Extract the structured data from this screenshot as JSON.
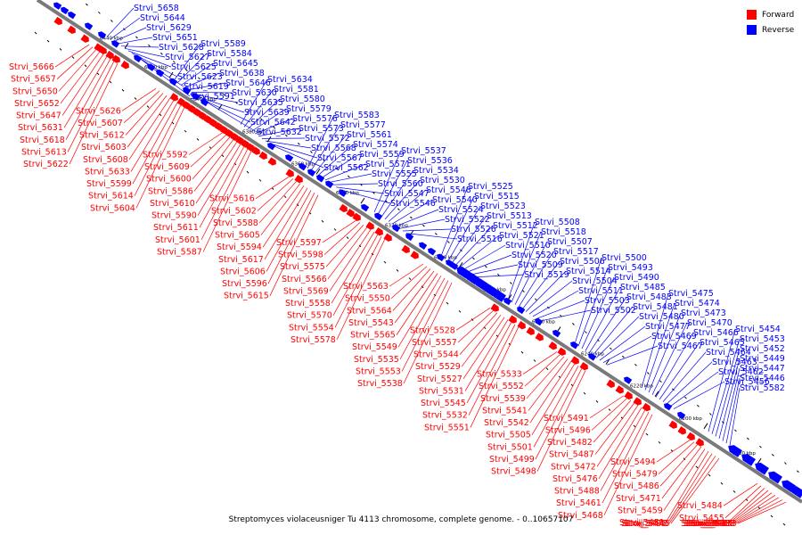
{
  "caption": "Streptomyces violaceusniger Tu 4113 chromosome, complete genome. - 0..10657107",
  "legend": {
    "forward_label": "Forward",
    "reverse_label": "Reverse",
    "forward_color": "#ff0000",
    "reverse_color": "#0000ff"
  },
  "colors": {
    "forward": "#ff0000",
    "reverse": "#0000ff",
    "backbone": "#7a7a7a",
    "tick": "#000000"
  },
  "ruler": {
    "unit": "kbp",
    "ticks": [
      "6440 kbp",
      "6420 kbp",
      "6400 kbp",
      "6380 kbp",
      "6360 kbp",
      "6340 kbp",
      "6320 kbp",
      "6300 kbp",
      "6280 kbp",
      "6260 kbp",
      "6240 kbp",
      "6220 kbp",
      "6200 kbp",
      "6180 kbp"
    ]
  },
  "reverse_labels": [
    "Strvi_5658",
    "Strvi_5644",
    "Strvi_5629",
    "Strvi_5651",
    "Strvi_5628",
    "Strvi_5627",
    "Strvi_5625",
    "Strvi_5623",
    "Strvi_5619",
    "Strvi_5591",
    "Strvi_5589",
    "Strvi_5584",
    "Strvi_5645",
    "Strvi_5638",
    "Strvi_5646",
    "Strvi_5630",
    "Strvi_5635",
    "Strvi_5639",
    "Strvi_5642",
    "Strvi_5632",
    "Strvi_5634",
    "Strvi_5581",
    "Strvi_5580",
    "Strvi_5579",
    "Strvi_5576",
    "Strvi_5573",
    "Strvi_5572",
    "Strvi_5568",
    "Strvi_5567",
    "Strvi_5562",
    "Strvi_5583",
    "Strvi_5577",
    "Strvi_5561",
    "Strvi_5574",
    "Strvi_5559",
    "Strvi_5571",
    "Strvi_5555",
    "Strvi_5560",
    "Strvi_5547",
    "Strvi_5546",
    "Strvi_5537",
    "Strvi_5536",
    "Strvi_5534",
    "Strvi_5530",
    "Strvi_5548",
    "Strvi_5540",
    "Strvi_5524",
    "Strvi_5522",
    "Strvi_5526",
    "Strvi_5516",
    "Strvi_5525",
    "Strvi_5515",
    "Strvi_5523",
    "Strvi_5513",
    "Strvi_5512",
    "Strvi_5521",
    "Strvi_5510",
    "Strvi_5520",
    "Strvi_5509",
    "Strvi_5519",
    "Strvi_5508",
    "Strvi_5518",
    "Strvi_5507",
    "Strvi_5517",
    "Strvi_5506",
    "Strvi_5514",
    "Strvi_5504",
    "Strvi_5511",
    "Strvi_5503",
    "Strvi_5502",
    "Strvi_5500",
    "Strvi_5493",
    "Strvi_5490",
    "Strvi_5485",
    "Strvi_5483",
    "Strvi_5481",
    "Strvi_5480",
    "Strvi_5477",
    "Strvi_5469",
    "Strvi_5467",
    "Strvi_5475",
    "Strvi_5474",
    "Strvi_5473",
    "Strvi_5470",
    "Strvi_5466",
    "Strvi_5465",
    "Strvi_5464",
    "Strvi_5463",
    "Strvi_5462",
    "Strvi_5456",
    "Strvi_5454",
    "Strvi_5453",
    "Strvi_5452",
    "Strvi_5449",
    "Strvi_5447",
    "Strvi_5446",
    "Strvi_5582"
  ],
  "forward_labels": [
    "Strvi_5666",
    "Strvi_5657",
    "Strvi_5650",
    "Strvi_5652",
    "Strvi_5647",
    "Strvi_5631",
    "Strvi_5618",
    "Strvi_5613",
    "Strvi_5622",
    "Strvi_5626",
    "Strvi_5607",
    "Strvi_5612",
    "Strvi_5603",
    "Strvi_5608",
    "Strvi_5633",
    "Strvi_5599",
    "Strvi_5614",
    "Strvi_5604",
    "Strvi_5592",
    "Strvi_5609",
    "Strvi_5600",
    "Strvi_5586",
    "Strvi_5610",
    "Strvi_5590",
    "Strvi_5611",
    "Strvi_5601",
    "Strvi_5587",
    "Strvi_5616",
    "Strvi_5602",
    "Strvi_5588",
    "Strvi_5605",
    "Strvi_5594",
    "Strvi_5617",
    "Strvi_5606",
    "Strvi_5596",
    "Strvi_5615",
    "Strvi_5597",
    "Strvi_5598",
    "Strvi_5575",
    "Strvi_5566",
    "Strvi_5569",
    "Strvi_5558",
    "Strvi_5570",
    "Strvi_5554",
    "Strvi_5578",
    "Strvi_5563",
    "Strvi_5550",
    "Strvi_5564",
    "Strvi_5543",
    "Strvi_5565",
    "Strvi_5549",
    "Strvi_5535",
    "Strvi_5553",
    "Strvi_5538",
    "Strvi_5528",
    "Strvi_5557",
    "Strvi_5544",
    "Strvi_5529",
    "Strvi_5527",
    "Strvi_5531",
    "Strvi_5545",
    "Strvi_5532",
    "Strvi_5551",
    "Strvi_5533",
    "Strvi_5552",
    "Strvi_5539",
    "Strvi_5541",
    "Strvi_5542",
    "Strvi_5505",
    "Strvi_5501",
    "Strvi_5499",
    "Strvi_5498",
    "Strvi_5491",
    "Strvi_5496",
    "Strvi_5482",
    "Strvi_5487",
    "Strvi_5472",
    "Strvi_5476",
    "Strvi_5488",
    "Strvi_5461",
    "Strvi_5468",
    "Strvi_5494",
    "Strvi_5479",
    "Strvi_5486",
    "Strvi_5471",
    "Strvi_5459",
    "Strvi_5451",
    "Strvi_5495",
    "Strvi_5478",
    "Strvi_5445",
    "Strvi_5484",
    "Strvi_5455",
    "Strvi_5441",
    "Strvi_5442",
    "Strvi_5436",
    "Strvi_5437",
    "Strvi_5435",
    "Strvi_5438",
    "Strvi_5433"
  ]
}
